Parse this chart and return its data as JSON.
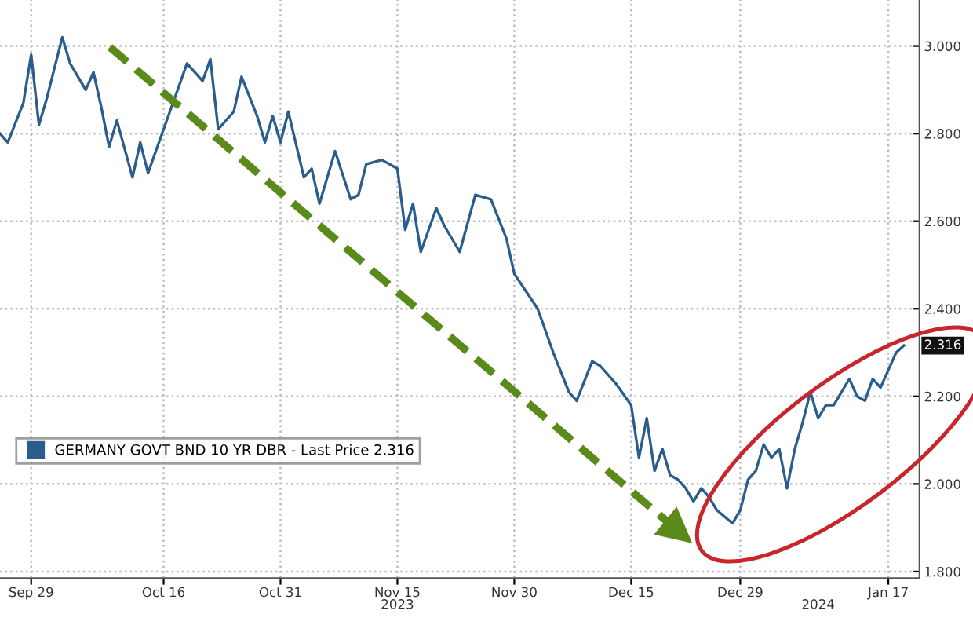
{
  "chart_data": {
    "type": "line",
    "x": [
      "2023-09-25",
      "2023-09-26",
      "2023-09-28",
      "2023-09-29",
      "2023-09-30",
      "2023-10-01",
      "2023-10-02",
      "2023-10-03",
      "2023-10-04",
      "2023-10-06",
      "2023-10-07",
      "2023-10-08",
      "2023-10-09",
      "2023-10-10",
      "2023-10-12",
      "2023-10-13",
      "2023-10-14",
      "2023-10-16",
      "2023-10-18",
      "2023-10-19",
      "2023-10-21",
      "2023-10-22",
      "2023-10-23",
      "2023-10-25",
      "2023-10-26",
      "2023-10-28",
      "2023-10-29",
      "2023-10-30",
      "2023-10-31",
      "2023-11-01",
      "2023-11-03",
      "2023-11-04",
      "2023-11-05",
      "2023-11-07",
      "2023-11-09",
      "2023-11-10",
      "2023-11-11",
      "2023-11-13",
      "2023-11-15",
      "2023-11-16",
      "2023-11-17",
      "2023-11-18",
      "2023-11-20",
      "2023-11-21",
      "2023-11-23",
      "2023-11-25",
      "2023-11-27",
      "2023-11-29",
      "2023-11-30",
      "2023-12-03",
      "2023-12-05",
      "2023-12-07",
      "2023-12-08",
      "2023-12-10",
      "2023-12-11",
      "2023-12-13",
      "2023-12-15",
      "2023-12-16",
      "2023-12-17",
      "2023-12-18",
      "2023-12-19",
      "2023-12-20",
      "2023-12-21",
      "2023-12-22",
      "2023-12-23",
      "2023-12-24",
      "2023-12-25",
      "2023-12-26",
      "2023-12-28",
      "2023-12-29",
      "2023-12-30",
      "2023-12-31",
      "2024-01-01",
      "2024-01-02",
      "2024-01-03",
      "2024-01-04",
      "2024-01-05",
      "2024-01-06",
      "2024-01-07",
      "2024-01-08",
      "2024-01-09",
      "2024-01-10",
      "2024-01-12",
      "2024-01-13",
      "2024-01-14",
      "2024-01-15",
      "2024-01-16",
      "2024-01-17",
      "2024-01-18",
      "2024-01-19"
    ],
    "series": [
      {
        "name": "GERMANY GOVT BND 10 YR DBR - Last Price 2.316",
        "color": "#2b5d8c",
        "values": [
          2.8,
          2.78,
          2.87,
          2.98,
          2.82,
          2.88,
          2.95,
          3.02,
          2.96,
          2.9,
          2.94,
          2.86,
          2.77,
          2.83,
          2.7,
          2.78,
          2.71,
          2.81,
          2.91,
          2.96,
          2.92,
          2.97,
          2.81,
          2.85,
          2.93,
          2.84,
          2.78,
          2.84,
          2.78,
          2.85,
          2.7,
          2.72,
          2.64,
          2.76,
          2.65,
          2.66,
          2.73,
          2.74,
          2.72,
          2.58,
          2.64,
          2.53,
          2.63,
          2.59,
          2.53,
          2.66,
          2.65,
          2.56,
          2.48,
          2.4,
          2.3,
          2.21,
          2.19,
          2.28,
          2.27,
          2.23,
          2.18,
          2.06,
          2.15,
          2.03,
          2.08,
          2.02,
          2.01,
          1.99,
          1.96,
          1.99,
          1.97,
          1.94,
          1.91,
          1.94,
          2.01,
          2.03,
          2.09,
          2.06,
          2.08,
          1.99,
          2.08,
          2.14,
          2.21,
          2.15,
          2.18,
          2.18,
          2.24,
          2.2,
          2.19,
          2.24,
          2.22,
          2.26,
          2.3,
          2.316
        ]
      }
    ],
    "x2lim": [
      "2023-09-25",
      "2024-01-21"
    ],
    "x2ticks": [
      {
        "value": "2023-11-15",
        "label": "2023"
      },
      {
        "value": "2024-01-08",
        "label": "2024"
      }
    ],
    "xlim": [
      "2023-09-25",
      "2024-01-21"
    ],
    "xticks": [
      {
        "value": "2023-09-29",
        "label": "Sep 29"
      },
      {
        "value": "2023-10-16",
        "label": "Oct 16"
      },
      {
        "value": "2023-10-31",
        "label": "Oct 31"
      },
      {
        "value": "2023-11-15",
        "label": "Nov 15"
      },
      {
        "value": "2023-11-30",
        "label": "Nov 30"
      },
      {
        "value": "2023-12-15",
        "label": "Dec 15"
      },
      {
        "value": "2023-12-29",
        "label": "Dec 29"
      },
      {
        "value": "2024-01-17",
        "label": "Jan 17"
      }
    ],
    "ylim": [
      1.785,
      3.105
    ],
    "yticks": [
      {
        "value": 1.8,
        "label": "1.800"
      },
      {
        "value": 2.0,
        "label": "2.000"
      },
      {
        "value": 2.2,
        "label": "2.200"
      },
      {
        "value": 2.4,
        "label": "2.400"
      },
      {
        "value": 2.6,
        "label": "2.600"
      },
      {
        "value": 2.8,
        "label": "2.800"
      },
      {
        "value": 3.0,
        "label": "3.000"
      }
    ],
    "annotations": [
      {
        "text": "2.316",
        "x": "2024-01-19",
        "y": 2.316
      }
    ],
    "grid": true,
    "legend": "left",
    "line_style": "solid",
    "marker": "none"
  }
}
